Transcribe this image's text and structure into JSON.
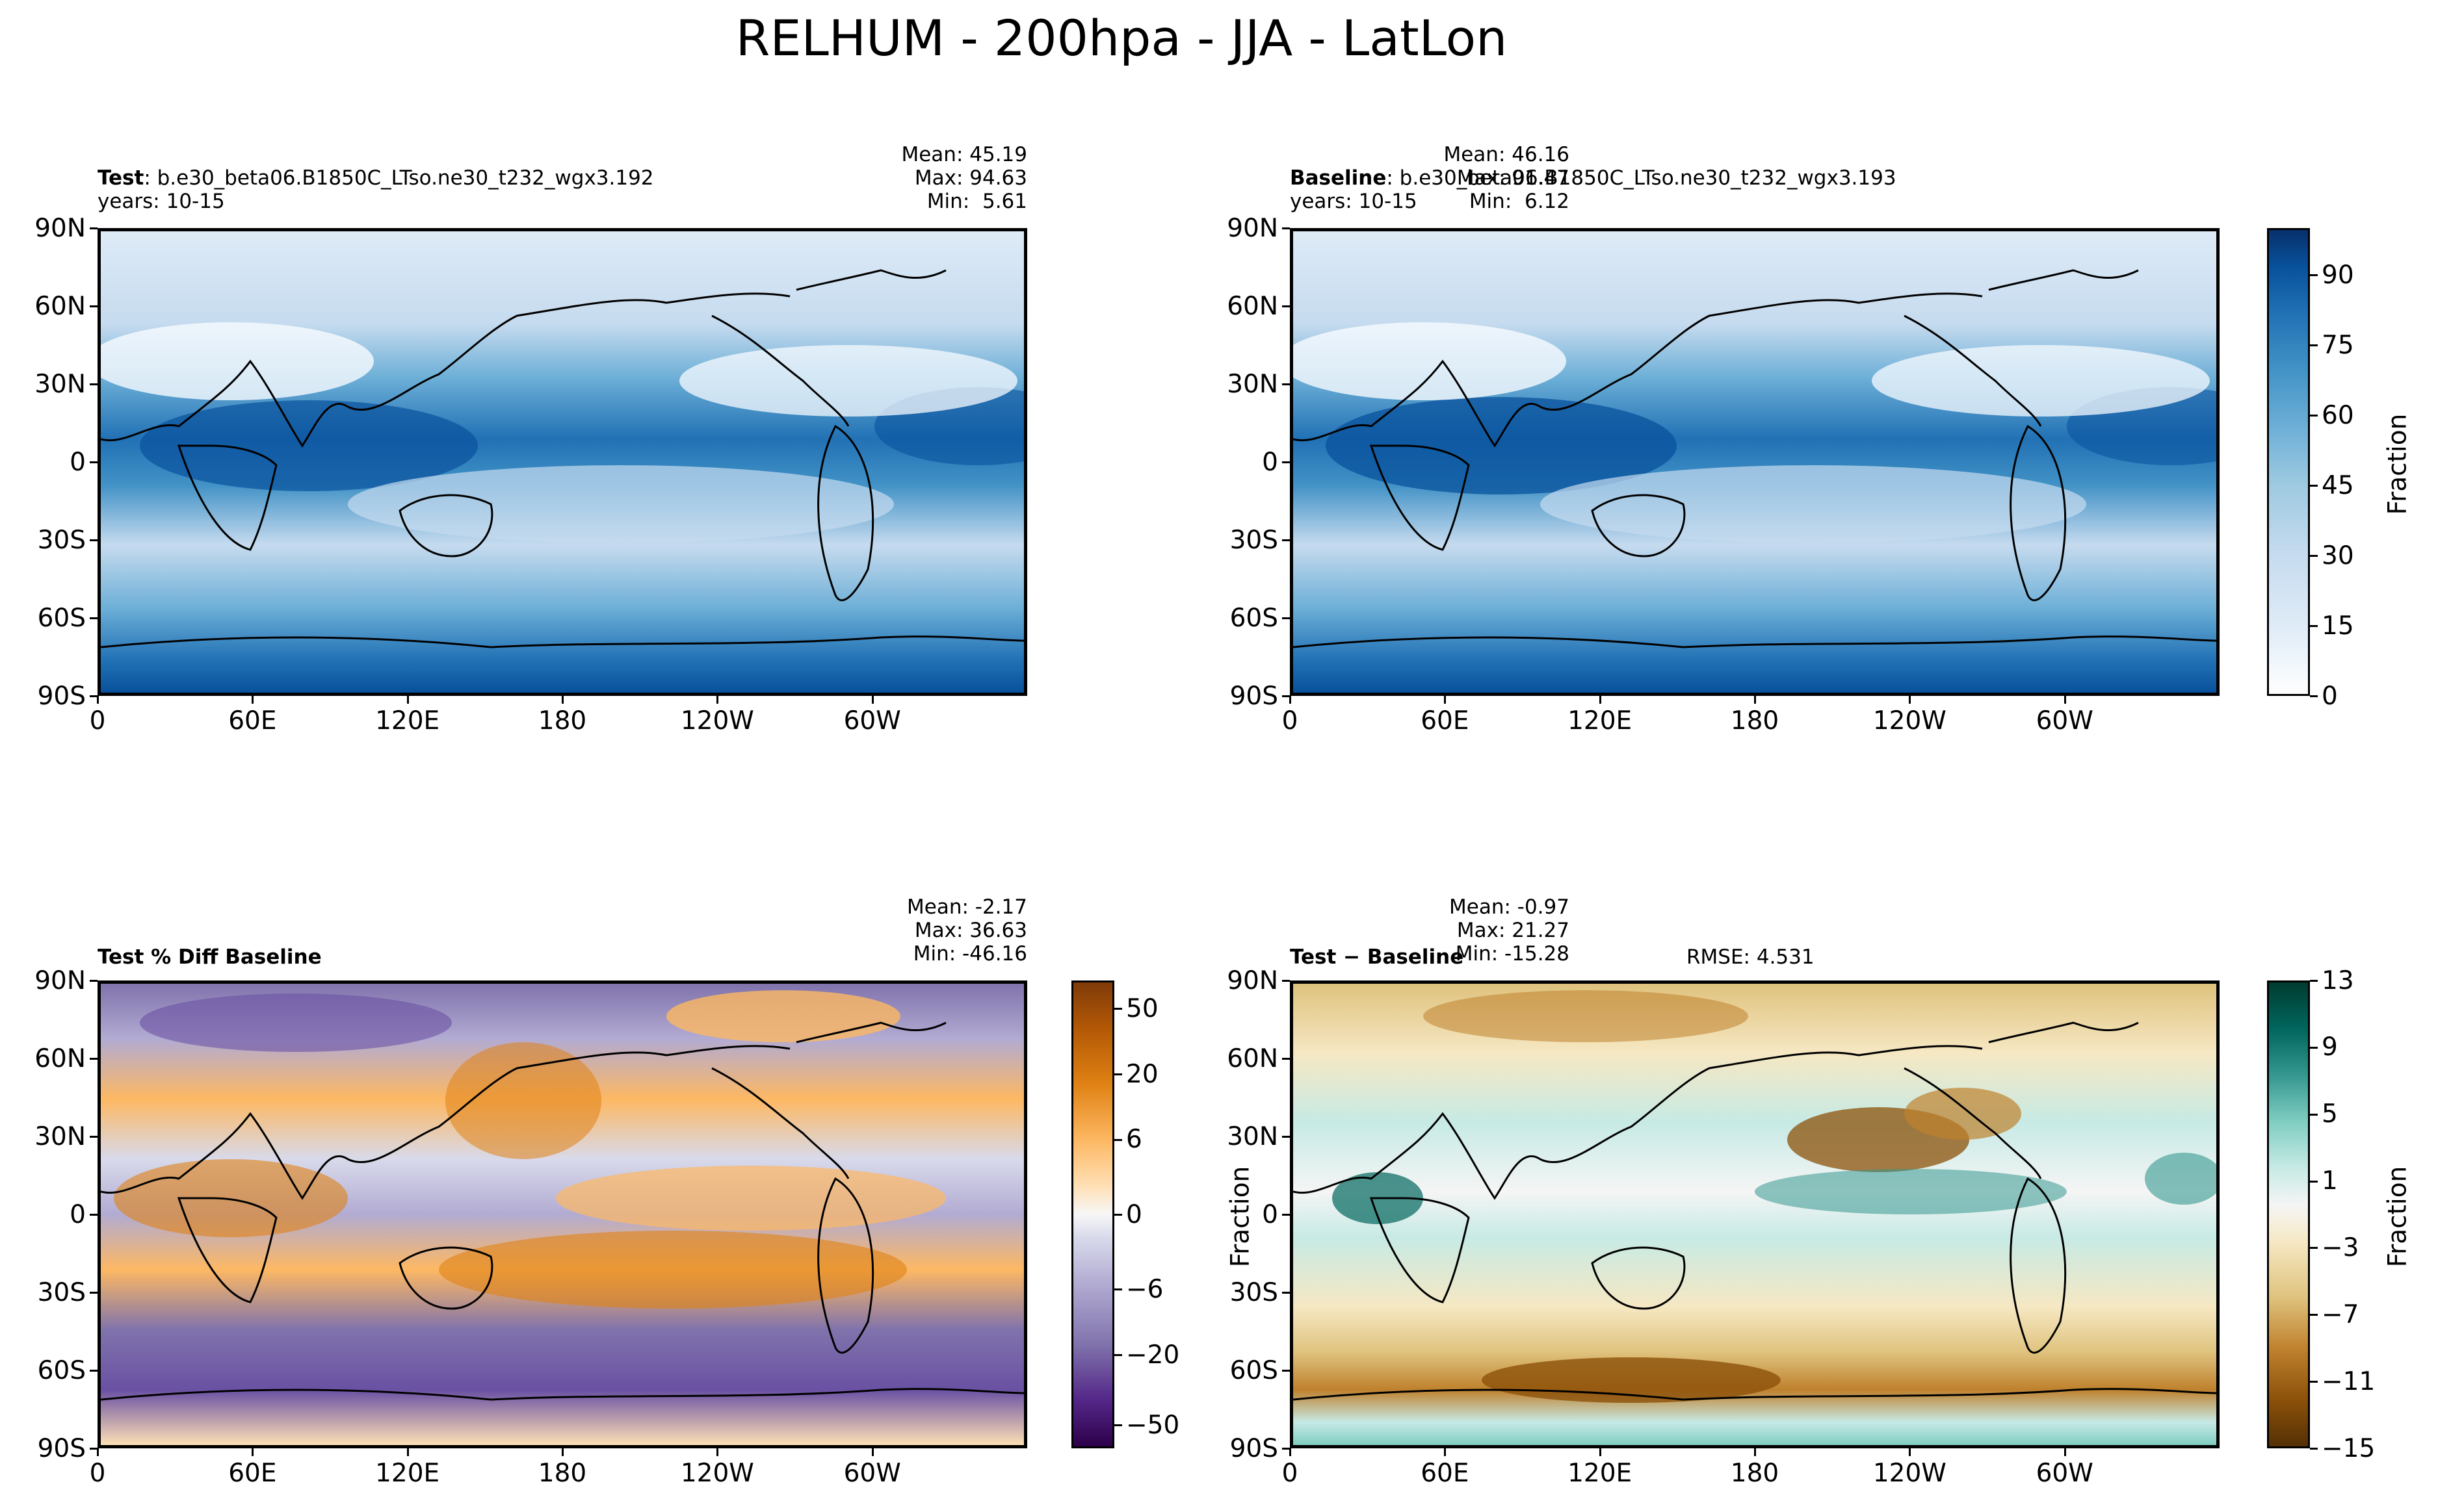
{
  "figure": {
    "title": "RELHUM - 200hpa - JJA - LatLon"
  },
  "axes": {
    "x_ticks": [
      "0",
      "60E",
      "120E",
      "180",
      "120W",
      "60W"
    ],
    "y_ticks": [
      "90N",
      "60N",
      "30N",
      "0",
      "30S",
      "60S",
      "90S"
    ]
  },
  "panels": {
    "test": {
      "label_bold": "Test",
      "label_rest": ": b.e30_beta06.B1850C_LTso.ne30_t232_wgx3.192",
      "years": "years: 10-15",
      "mean": "Mean: 45.19",
      "max": "Max: 94.63",
      "min": "Min:  5.61"
    },
    "baseline": {
      "label_bold": "Baseline",
      "label_rest": ": b.e30_beta06.B1850C_LTso.ne30_t232_wgx3.193",
      "years": "years: 10-15",
      "mean": "Mean: 46.16",
      "max": "Max: 91.47",
      "min": "Min:  6.12"
    },
    "pctdiff": {
      "label_bold": "Test % Diff Baseline",
      "mean": "Mean: -2.17",
      "max": "Max: 36.63",
      "min": "Min: -46.16"
    },
    "diff": {
      "label_bold": "Test − Baseline",
      "rmse": "RMSE: 4.531",
      "ylabel": "Fraction",
      "mean": "Mean: -0.97",
      "max": "Max: 21.27",
      "min": "Min: -15.28"
    }
  },
  "colorbars": {
    "top": {
      "label": "Fraction",
      "ticks": [
        "0",
        "15",
        "30",
        "45",
        "60",
        "75",
        "90"
      ],
      "range": [
        0,
        100
      ],
      "colors": [
        "#f7fbff",
        "#08306b"
      ]
    },
    "pct": {
      "ticks": [
        "−50",
        "−20",
        "−6",
        "0",
        "6",
        "20",
        "50"
      ],
      "colors": [
        "#3f0d5c",
        "#6a51a3",
        "#bcbddc",
        "#f7f7f7",
        "#fdb863",
        "#e08214",
        "#7f3b08"
      ]
    },
    "diff": {
      "label": "Fraction",
      "ticks": [
        "−15",
        "−11",
        "−7",
        "−3",
        "1",
        "5",
        "9",
        "13"
      ],
      "colors": [
        "#543005",
        "#8c510a",
        "#bf812d",
        "#dfc27d",
        "#f6e8c3",
        "#f5f5f5",
        "#c7eae5",
        "#80cdc1",
        "#35978f",
        "#01665e",
        "#003c30"
      ]
    }
  },
  "chart_data": [
    {
      "type": "heatmap",
      "title": "Test: b.e30_beta06.B1850C_LTso.ne30_t232_wgx3.192",
      "variable": "RELHUM",
      "units": "Fraction",
      "xlim": [
        0,
        360
      ],
      "ylim": [
        -90,
        90
      ],
      "stats": {
        "mean": 45.19,
        "max": 94.63,
        "min": 5.61
      }
    },
    {
      "type": "heatmap",
      "title": "Baseline: b.e30_beta06.B1850C_LTso.ne30_t232_wgx3.193",
      "variable": "RELHUM",
      "units": "Fraction",
      "xlim": [
        0,
        360
      ],
      "ylim": [
        -90,
        90
      ],
      "stats": {
        "mean": 46.16,
        "max": 91.47,
        "min": 6.12
      }
    },
    {
      "type": "heatmap",
      "title": "Test % Diff Baseline",
      "xlim": [
        0,
        360
      ],
      "ylim": [
        -90,
        90
      ],
      "stats": {
        "mean": -2.17,
        "max": 36.63,
        "min": -46.16
      }
    },
    {
      "type": "heatmap",
      "title": "Test − Baseline",
      "units": "Fraction",
      "xlim": [
        0,
        360
      ],
      "ylim": [
        -90,
        90
      ],
      "stats": {
        "mean": -0.97,
        "max": 21.27,
        "min": -15.28,
        "rmse": 4.531
      }
    }
  ]
}
